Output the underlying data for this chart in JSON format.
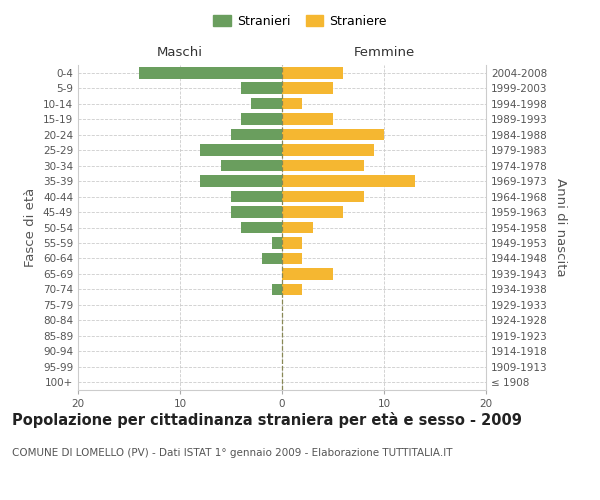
{
  "age_groups": [
    "100+",
    "95-99",
    "90-94",
    "85-89",
    "80-84",
    "75-79",
    "70-74",
    "65-69",
    "60-64",
    "55-59",
    "50-54",
    "45-49",
    "40-44",
    "35-39",
    "30-34",
    "25-29",
    "20-24",
    "15-19",
    "10-14",
    "5-9",
    "0-4"
  ],
  "birth_years": [
    "≤ 1908",
    "1909-1913",
    "1914-1918",
    "1919-1923",
    "1924-1928",
    "1929-1933",
    "1934-1938",
    "1939-1943",
    "1944-1948",
    "1949-1953",
    "1954-1958",
    "1959-1963",
    "1964-1968",
    "1969-1973",
    "1974-1978",
    "1979-1983",
    "1984-1988",
    "1989-1993",
    "1994-1998",
    "1999-2003",
    "2004-2008"
  ],
  "maschi": [
    0,
    0,
    0,
    0,
    0,
    0,
    1,
    0,
    2,
    1,
    4,
    5,
    5,
    8,
    6,
    8,
    5,
    4,
    3,
    4,
    14
  ],
  "femmine": [
    0,
    0,
    0,
    0,
    0,
    0,
    2,
    5,
    2,
    2,
    3,
    6,
    8,
    13,
    8,
    9,
    10,
    5,
    2,
    5,
    6
  ],
  "maschi_color": "#6a9e5e",
  "femmine_color": "#f5b731",
  "background_color": "#ffffff",
  "grid_color": "#cccccc",
  "title": "Popolazione per cittadinanza straniera per età e sesso - 2009",
  "subtitle": "COMUNE DI LOMELLO (PV) - Dati ISTAT 1° gennaio 2009 - Elaborazione TUTTITALIA.IT",
  "xlabel_left": "Maschi",
  "xlabel_right": "Femmine",
  "ylabel_left": "Fasce di età",
  "ylabel_right": "Anni di nascita",
  "legend_maschi": "Stranieri",
  "legend_femmine": "Straniere",
  "xlim": 20,
  "title_fontsize": 10.5,
  "subtitle_fontsize": 7.5,
  "tick_fontsize": 7.5,
  "label_fontsize": 9.5
}
